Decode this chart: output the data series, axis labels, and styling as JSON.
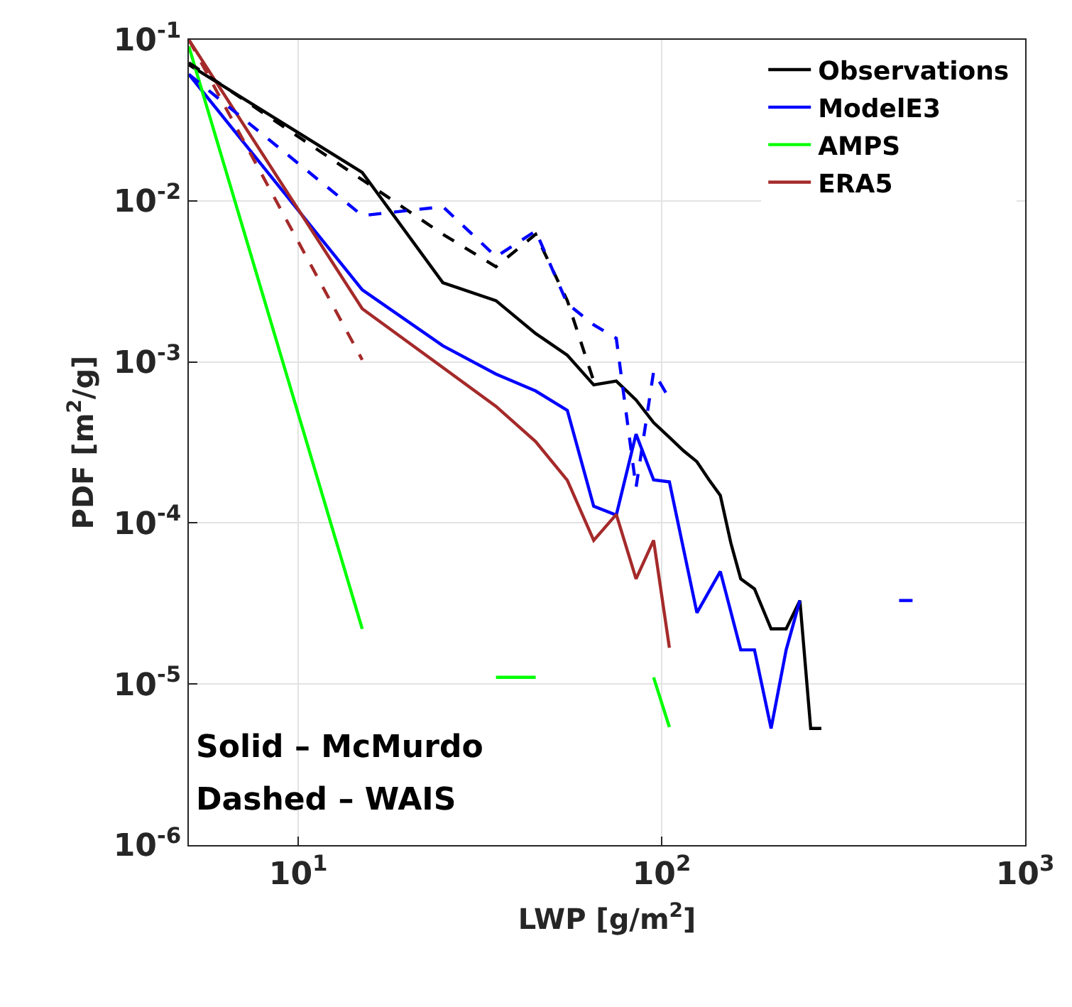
{
  "chart_data": {
    "type": "line",
    "xlabel": "LWP [g/m$^{2}$]",
    "ylabel": "PDF [m$^{2}$/g]",
    "log": "xy",
    "grid": true,
    "legend": "top right",
    "marker": "none",
    "xlim": [
      5,
      1000
    ],
    "xticks": [
      {
        "value": 10,
        "label": "10$^{1}$"
      },
      {
        "value": 100,
        "label": "10$^{2}$"
      },
      {
        "value": 1000,
        "label": "10$^{3}$"
      }
    ],
    "ylim": [
      1e-06,
      0.1
    ],
    "yticks": [
      {
        "value": 1e-06,
        "label": "10$^{-6}$"
      },
      {
        "value": 1e-05,
        "label": "10$^{-5}$"
      },
      {
        "value": 0.0001,
        "label": "10$^{-4}$"
      },
      {
        "value": 0.001,
        "label": "10$^{-3}$"
      },
      {
        "value": 0.01,
        "label": "10$^{-2}$"
      },
      {
        "value": 0.1,
        "label": "10$^{-1}$"
      }
    ],
    "annotations": [
      "Solid – McMurdo",
      "Dashed – WAIS"
    ],
    "series": [
      {
        "name": "Observations",
        "color": "#000000",
        "line_style": "solid",
        "x": [
          5,
          15,
          25,
          35,
          45,
          55,
          65,
          75,
          85,
          95,
          105,
          115,
          125,
          135,
          145,
          155,
          165,
          180,
          200,
          220,
          240,
          257,
          275
        ],
        "values": [
          0.07,
          0.015,
          0.0031,
          0.0024,
          0.0015,
          0.0011,
          0.00072,
          0.00076,
          0.00058,
          0.00042,
          0.00034,
          0.00028,
          0.00024,
          0.000185,
          0.000148,
          7.5e-05,
          4.5e-05,
          3.9e-05,
          2.2e-05,
          2.2e-05,
          3.3e-05,
          5.3e-06,
          5.3e-06
        ]
      },
      {
        "name": "ModelE3",
        "color": "#0000ff",
        "line_style": "solid",
        "x": [
          5,
          15,
          25,
          35,
          45,
          55,
          65,
          75,
          85,
          95,
          105,
          125,
          145,
          165,
          180,
          200,
          220,
          240,
          300,
          450,
          490
        ],
        "values": [
          0.061,
          0.0028,
          0.00126,
          0.00084,
          0.00066,
          0.0005,
          0.000127,
          0.000112,
          0.000356,
          0.000185,
          0.00018,
          2.77e-05,
          5e-05,
          1.63e-05,
          1.63e-05,
          5.3e-06,
          1.63e-05,
          3.3e-05,
          null,
          3.3e-05,
          3.3e-05
        ]
      },
      {
        "name": "AMPS",
        "color": "#00ff00",
        "line_style": "solid",
        "x": [
          5,
          15,
          25,
          35,
          45,
          70,
          95,
          105
        ],
        "values": [
          0.091,
          2.2e-05,
          null,
          1.1e-05,
          1.1e-05,
          null,
          1.1e-05,
          5.4e-06
        ]
      },
      {
        "name": "ERA5",
        "color": "#a52a2a",
        "line_style": "solid",
        "x": [
          5,
          15,
          35,
          45,
          55,
          65,
          75,
          85,
          95,
          105
        ],
        "values": [
          0.1,
          0.00214,
          0.00053,
          0.00032,
          0.000184,
          7.8e-05,
          0.000113,
          4.5e-05,
          7.8e-05,
          1.68e-05
        ]
      },
      {
        "color": "#000000",
        "line_style": "dashed",
        "x": [
          5,
          25,
          35,
          45,
          55,
          65
        ],
        "values": [
          0.072,
          0.0062,
          0.0039,
          0.0062,
          0.0024,
          0.00076
        ]
      },
      {
        "color": "#0000ff",
        "line_style": "dashed",
        "x": [
          5,
          15,
          25,
          35,
          45,
          55,
          65,
          75,
          85,
          95,
          105
        ],
        "values": [
          0.061,
          0.0081,
          0.0092,
          0.0045,
          0.0065,
          0.0023,
          0.0017,
          0.0014,
          0.000166,
          0.00087,
          0.00059
        ]
      },
      {
        "color": "#a52a2a",
        "line_style": "dashed",
        "x": [
          5,
          15
        ],
        "values": [
          0.1,
          0.00103
        ]
      }
    ]
  }
}
